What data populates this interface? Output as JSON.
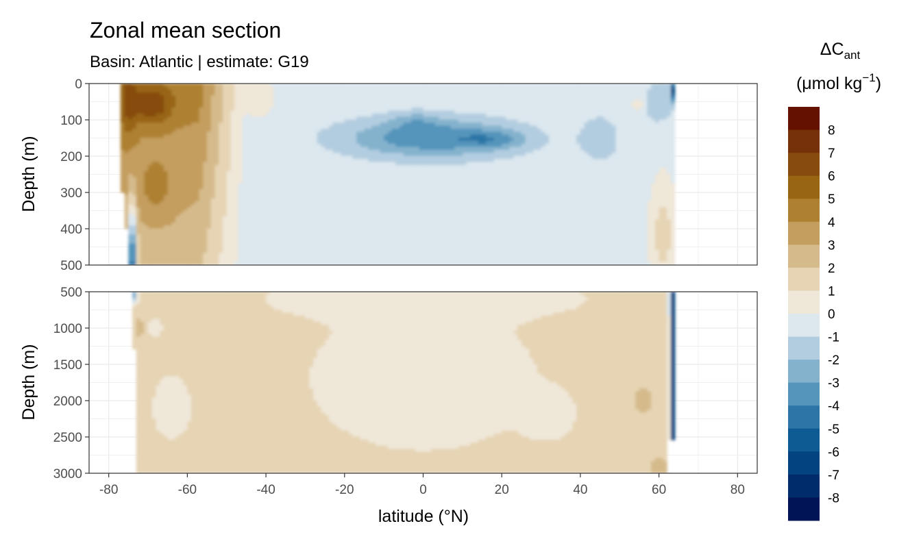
{
  "chart_data": {
    "type": "heatmap",
    "title": "Zonal mean section",
    "subtitle": "Basin: Atlantic | estimate: G19",
    "xlabel": "latitude (°N)",
    "ylabel": "Depth (m)",
    "xlim": [
      -85,
      85
    ],
    "x_ticks": [
      "-80",
      "-60",
      "-40",
      "-20",
      "0",
      "20",
      "40",
      "60",
      "80"
    ],
    "grid": true,
    "legend_position": "right",
    "legend": {
      "title_main": "ΔC",
      "title_sub": "ant",
      "unit_main": "(μmol kg",
      "unit_sup": "−1",
      "unit_close": ")",
      "labels": [
        "8",
        "7",
        "6",
        "5",
        "4",
        "3",
        "2",
        "1",
        "0",
        "-1",
        "-2",
        "-3",
        "-4",
        "-5",
        "-6",
        "-7",
        "-8"
      ],
      "colors": [
        "#651100",
        "#76300a",
        "#864b0d",
        "#986513",
        "#ae8132",
        "#c49e5e",
        "#d5bb8c",
        "#e6d4b4",
        "#efe7d8",
        "#dce7ee",
        "#b3cde0",
        "#84b2cd",
        "#5594bb",
        "#2c75a6",
        "#0d5b92",
        "#03437f",
        "#012c6b",
        "#011556"
      ]
    },
    "panels": [
      {
        "name": "upper",
        "ylim": [
          0,
          500
        ],
        "y_ticks": [
          "0",
          "100",
          "200",
          "300",
          "400",
          "500"
        ],
        "data_extent_lat": [
          -77,
          64
        ]
      },
      {
        "name": "lower",
        "ylim": [
          500,
          3000
        ],
        "y_ticks": [
          "500",
          "1000",
          "1500",
          "2000",
          "2500",
          "3000"
        ],
        "data_extent_lat": [
          -74,
          64
        ]
      }
    ]
  }
}
